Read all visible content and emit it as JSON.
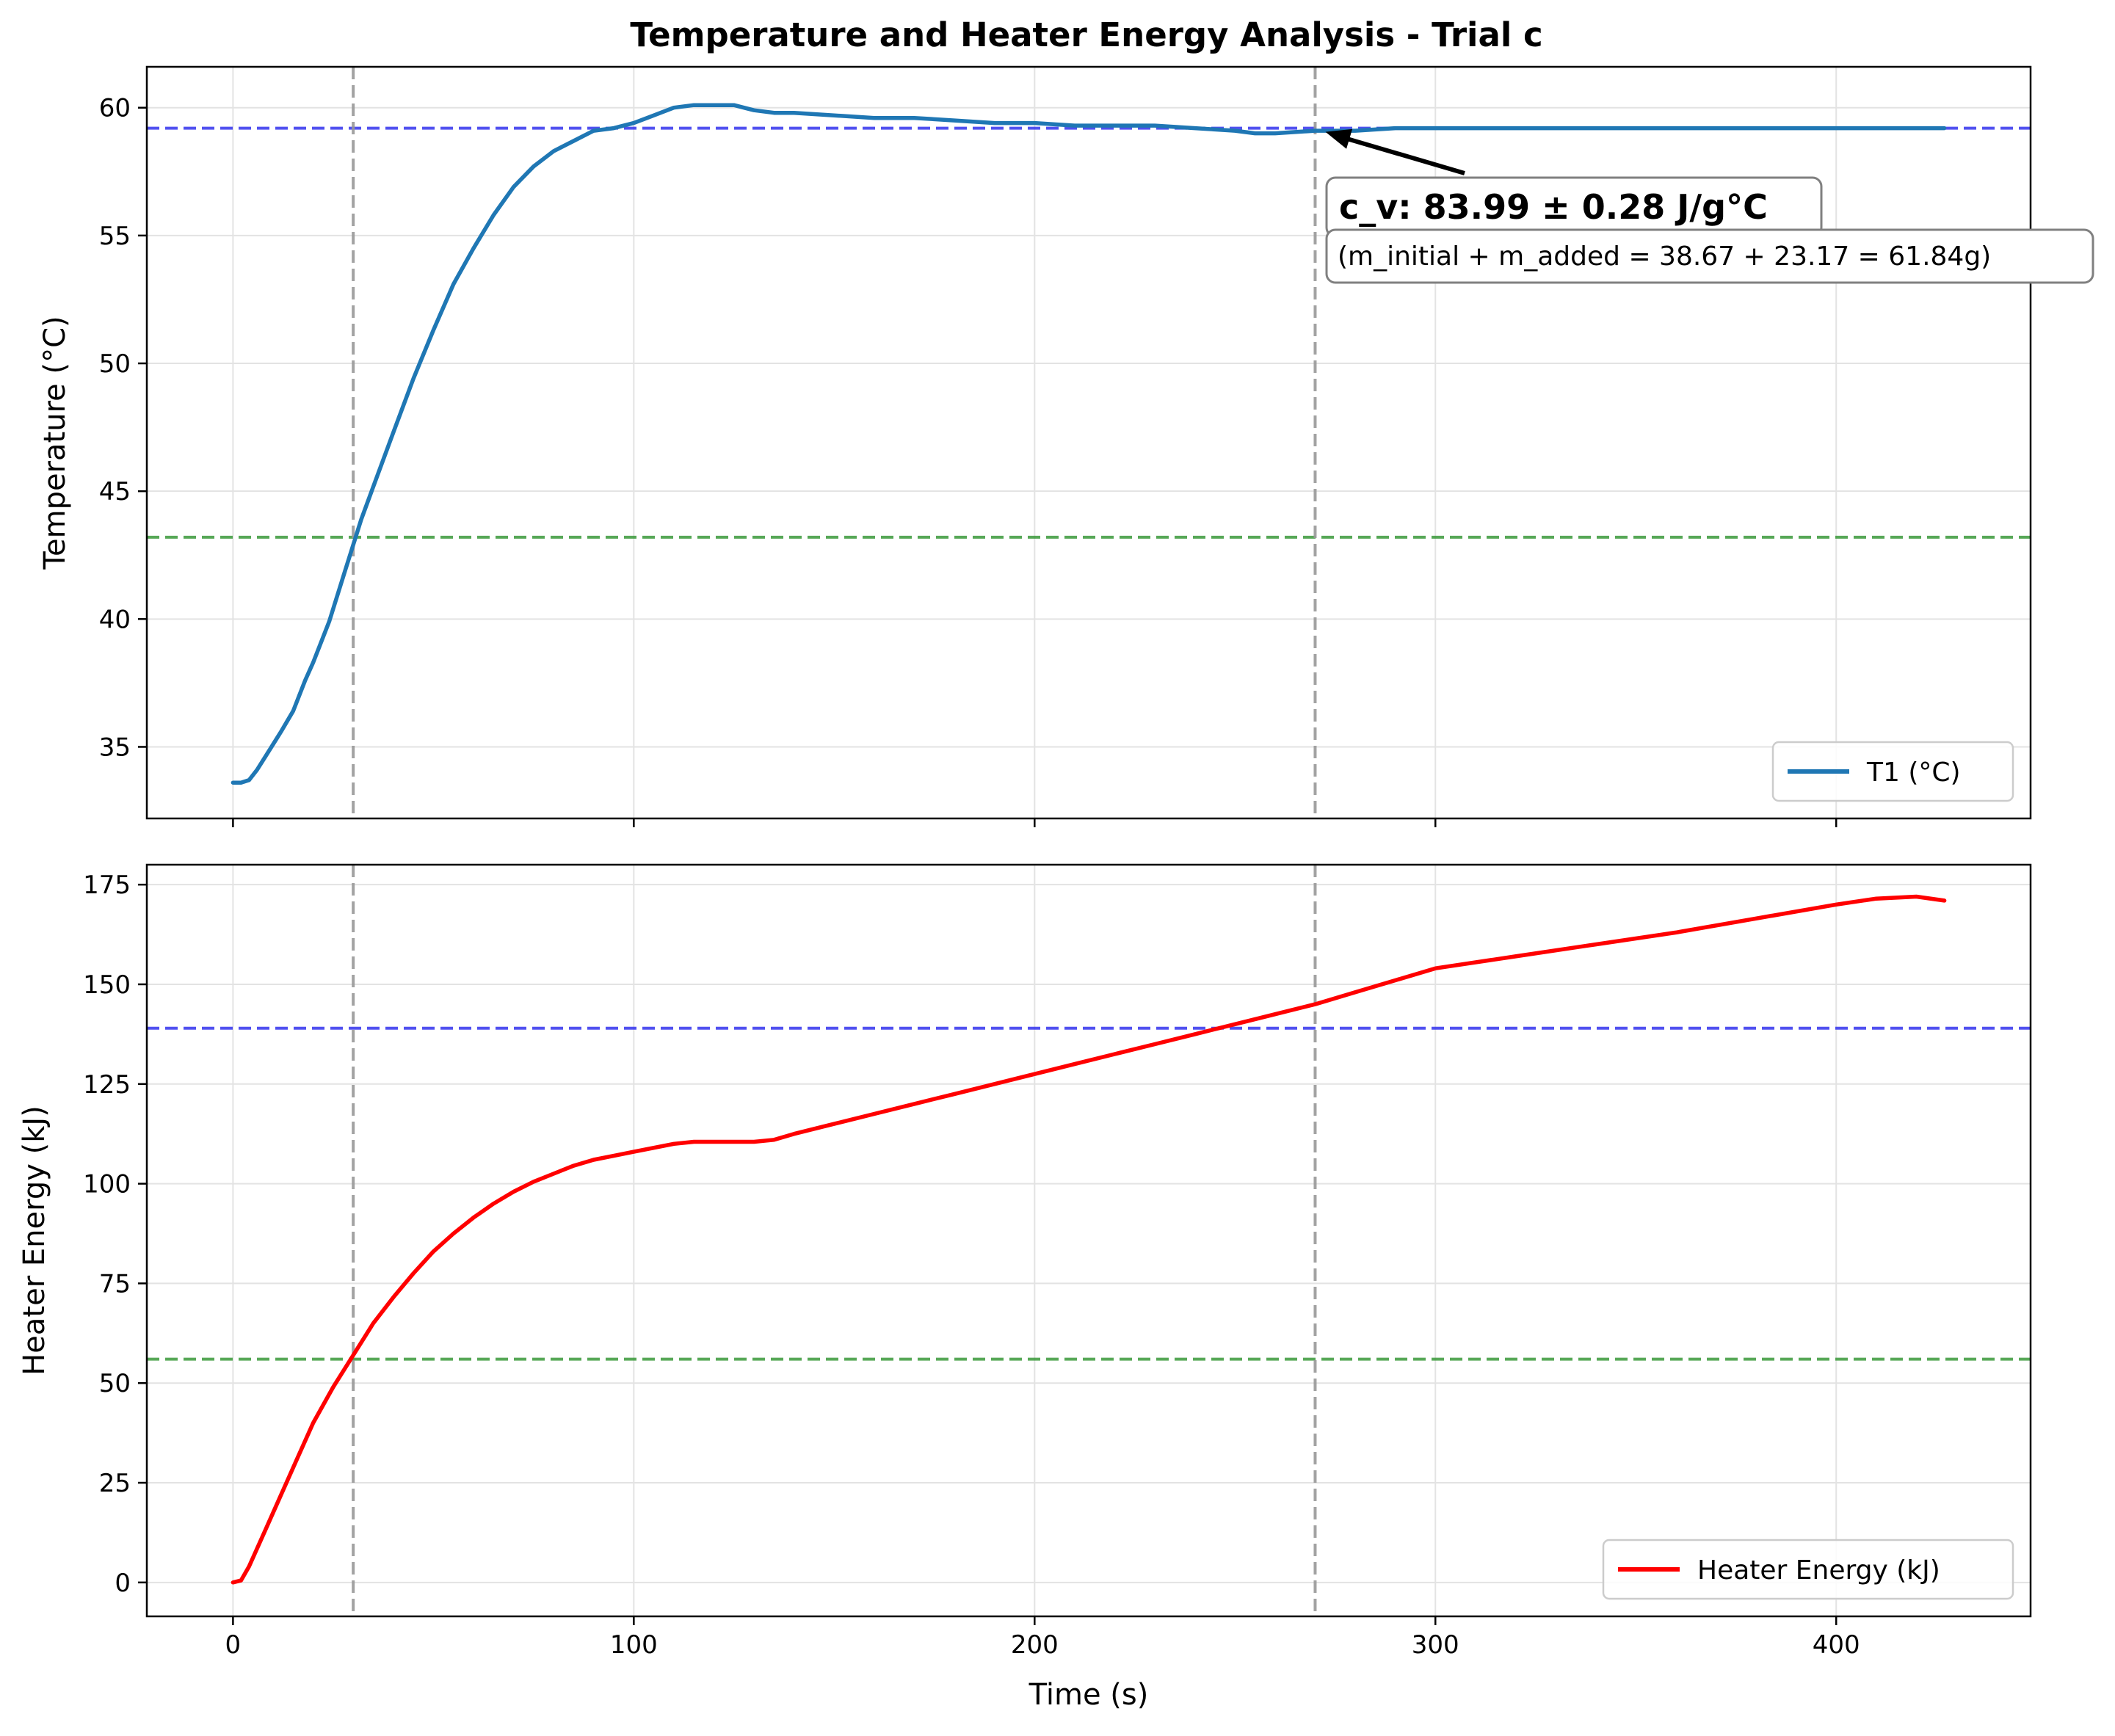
{
  "chart_data": [
    {
      "type": "line",
      "title": "Temperature and Heater Energy Analysis - Trial c",
      "xlabel": "",
      "ylabel": "Temperature (°C)",
      "xlim": [
        -21.5,
        448.5
      ],
      "ylim": [
        32.2,
        61.6
      ],
      "x_ticks": [
        0,
        100,
        200,
        300,
        400
      ],
      "x_tick_labels": [],
      "y_ticks": [
        35,
        40,
        45,
        50,
        55,
        60
      ],
      "y_tick_labels": [
        "35",
        "40",
        "45",
        "50",
        "55",
        "60"
      ],
      "grid": true,
      "legend_position": "lower-right",
      "series": [
        {
          "name": "T1 (°C)",
          "color": "#1f77b4",
          "x": [
            0,
            2,
            4,
            6,
            8,
            10,
            12,
            15,
            18,
            20,
            24,
            28,
            32,
            36,
            40,
            45,
            50,
            55,
            60,
            65,
            70,
            75,
            80,
            85,
            90,
            95,
            100,
            105,
            110,
            115,
            120,
            125,
            130,
            135,
            140,
            150,
            160,
            170,
            180,
            190,
            200,
            210,
            220,
            230,
            240,
            250,
            255,
            260,
            270,
            280,
            290,
            300,
            310,
            320,
            330,
            340,
            350,
            360,
            370,
            380,
            390,
            400,
            410,
            420,
            427
          ],
          "y": [
            33.6,
            33.6,
            33.7,
            34.1,
            34.6,
            35.1,
            35.6,
            36.4,
            37.6,
            38.3,
            39.9,
            41.9,
            43.9,
            45.6,
            47.3,
            49.4,
            51.3,
            53.1,
            54.5,
            55.8,
            56.9,
            57.7,
            58.3,
            58.7,
            59.1,
            59.2,
            59.4,
            59.7,
            60.0,
            60.1,
            60.1,
            60.1,
            59.9,
            59.8,
            59.8,
            59.7,
            59.6,
            59.6,
            59.5,
            59.4,
            59.4,
            59.3,
            59.3,
            59.3,
            59.2,
            59.1,
            59.0,
            59.0,
            59.1,
            59.1,
            59.2,
            59.2,
            59.2,
            59.2,
            59.2,
            59.2,
            59.2,
            59.2,
            59.2,
            59.2,
            59.2,
            59.2,
            59.2,
            59.2,
            59.2
          ]
        }
      ],
      "reference_lines": [
        {
          "orientation": "horizontal",
          "value": 59.2,
          "color": "#3333ee",
          "style": "dashed"
        },
        {
          "orientation": "horizontal",
          "value": 43.2,
          "color": "#3a9a3a",
          "style": "dashed"
        },
        {
          "orientation": "vertical",
          "value": 30,
          "color": "#999999",
          "style": "dashed"
        },
        {
          "orientation": "vertical",
          "value": 270,
          "color": "#999999",
          "style": "dashed"
        }
      ],
      "annotation": {
        "text": "c_v: 83.99 ± 0.28 J/g°C",
        "subtext": "(m_initial + m_added = 38.67 + 23.17 = 61.84g)",
        "arrow_target": {
          "x": 270,
          "y": 59.2
        }
      }
    },
    {
      "type": "line",
      "title": "",
      "xlabel": "Time (s)",
      "ylabel": "Heater Energy (kJ)",
      "xlim": [
        -21.5,
        448.5
      ],
      "ylim": [
        -8.5,
        180
      ],
      "x_ticks": [
        0,
        100,
        200,
        300,
        400
      ],
      "x_tick_labels": [
        "0",
        "100",
        "200",
        "300",
        "400"
      ],
      "y_ticks": [
        0,
        25,
        50,
        75,
        100,
        125,
        150,
        175
      ],
      "y_tick_labels": [
        "0",
        "25",
        "50",
        "75",
        "100",
        "125",
        "150",
        "175"
      ],
      "grid": true,
      "legend_position": "lower-right",
      "series": [
        {
          "name": "Heater Energy (kJ)",
          "color": "#ff0000",
          "x": [
            0,
            2,
            4,
            8,
            12,
            16,
            20,
            25,
            30,
            35,
            40,
            45,
            50,
            55,
            60,
            65,
            70,
            75,
            80,
            85,
            90,
            95,
            100,
            105,
            110,
            115,
            120,
            125,
            130,
            135,
            140,
            150,
            160,
            170,
            180,
            190,
            200,
            210,
            220,
            230,
            240,
            250,
            260,
            270,
            280,
            290,
            300,
            320,
            340,
            360,
            380,
            400,
            410,
            420,
            427
          ],
          "y": [
            0,
            0.5,
            4,
            13,
            22,
            31,
            40,
            49,
            57,
            65,
            71.5,
            77.5,
            83,
            87.5,
            91.5,
            95,
            98,
            100.5,
            102.5,
            104.5,
            106,
            107,
            108,
            109,
            110,
            110.5,
            110.5,
            110.5,
            110.5,
            111,
            112.5,
            115,
            117.5,
            120,
            122.5,
            125,
            127.5,
            130,
            132.5,
            135,
            137.5,
            140,
            142.5,
            145,
            148,
            151,
            154,
            157,
            160,
            163,
            166.5,
            170,
            171.5,
            172,
            171
          ]
        }
      ],
      "reference_lines": [
        {
          "orientation": "horizontal",
          "value": 139,
          "color": "#3333ee",
          "style": "dashed"
        },
        {
          "orientation": "horizontal",
          "value": 56,
          "color": "#3a9a3a",
          "style": "dashed"
        },
        {
          "orientation": "vertical",
          "value": 30,
          "color": "#999999",
          "style": "dashed"
        },
        {
          "orientation": "vertical",
          "value": 270,
          "color": "#999999",
          "style": "dashed"
        }
      ]
    }
  ]
}
